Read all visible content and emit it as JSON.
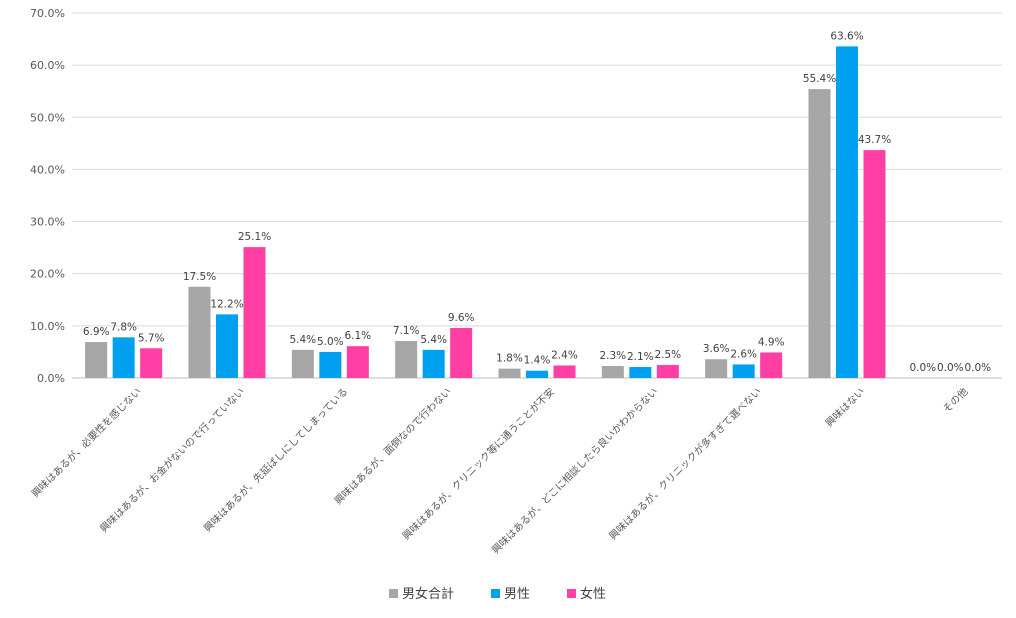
{
  "chart_data": {
    "type": "bar",
    "categories": [
      "興味はあるが、必要性を感じない",
      "興味はあるが、お金がないので行っていない",
      "興味はあるが、先延ばしにしてしまっている",
      "興味はあるが、面倒なので行わない",
      "興味はあるが、クリニック等に通うことが不安",
      "興味はあるが、どこに相談したら良いかわからない",
      "興味はあるが、クリニックが多すぎて選べない",
      "興味はない",
      "その他"
    ],
    "series": [
      {
        "name": "男女合計",
        "color": "#a6a6a6",
        "values": [
          6.9,
          17.5,
          5.4,
          7.1,
          1.8,
          2.3,
          3.6,
          55.4,
          0.0
        ]
      },
      {
        "name": "男性",
        "color": "#00a0f0",
        "values": [
          7.8,
          12.2,
          5.0,
          5.4,
          1.4,
          2.1,
          2.6,
          63.6,
          0.0
        ]
      },
      {
        "name": "女性",
        "color": "#ff3fa4",
        "values": [
          5.7,
          25.1,
          6.1,
          9.6,
          2.4,
          2.5,
          4.9,
          43.7,
          0.0
        ]
      }
    ],
    "ylim": [
      0,
      70
    ],
    "yticks": [
      "0.0%",
      "10.0%",
      "20.0%",
      "30.0%",
      "40.0%",
      "50.0%",
      "60.0%",
      "70.0%"
    ],
    "data_labels": [
      [
        "6.9%",
        "17.5%",
        "5.4%",
        "7.1%",
        "1.8%",
        "2.3%",
        "3.6%",
        "55.4%",
        "0.0%"
      ],
      [
        "7.8%",
        "12.2%",
        "5.0%",
        "5.4%",
        "1.4%",
        "2.1%",
        "2.6%",
        "63.6%",
        "0.0%"
      ],
      [
        "5.7%",
        "25.1%",
        "6.1%",
        "9.6%",
        "2.4%",
        "2.5%",
        "4.9%",
        "43.7%",
        "0.0%"
      ]
    ],
    "grid": true,
    "legend_position": "bottom",
    "title": "",
    "xlabel": "",
    "ylabel": ""
  }
}
